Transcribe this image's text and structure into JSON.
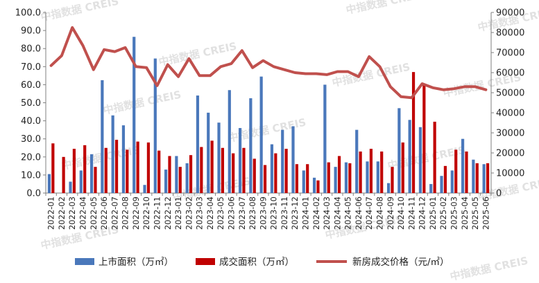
{
  "watermark": "中指数据 CREIS",
  "colors": {
    "supply_bar": "#4a78bb",
    "transaction_bar": "#c00000",
    "price_line": "#c0504d",
    "axis": "#7f7f7f"
  },
  "chart_data": {
    "type": "bar",
    "title": "",
    "categories": [
      "2022-01",
      "2022-02",
      "2022-03",
      "2022-04",
      "2022-05",
      "2022-06",
      "2022-07",
      "2022-08",
      "2022-09",
      "2022-10",
      "2022-11",
      "2022-12",
      "2023-01",
      "2023-02",
      "2023-03",
      "2023-04",
      "2023-05",
      "2023-06",
      "2023-07",
      "2023-08",
      "2023-09",
      "2023-10",
      "2023-11",
      "2023-12",
      "2024-01",
      "2024-02",
      "2024-03",
      "2024-04",
      "2024-05",
      "2024-06",
      "2024-07",
      "2024-08",
      "2024-09",
      "2024-10",
      "2024-11",
      "2024-12",
      "2025-01",
      "2025-02",
      "2025-03",
      "2025-04",
      "2025-05",
      "2025-06"
    ],
    "left_axis": {
      "ylim": [
        0,
        100
      ],
      "ticks": [
        "0.0",
        "10.0",
        "20.0",
        "30.0",
        "40.0",
        "50.0",
        "60.0",
        "70.0",
        "80.0",
        "90.0",
        "100.0"
      ]
    },
    "right_axis": {
      "ylim": [
        0,
        90000
      ],
      "ticks": [
        "0",
        "10000",
        "20000",
        "30000",
        "40000",
        "50000",
        "60000",
        "70000",
        "80000",
        "90000"
      ]
    },
    "series": [
      {
        "name": "上市面积（万㎡）",
        "type": "bar",
        "axis": "left",
        "values": [
          10.5,
          0,
          6.3,
          12.5,
          21.5,
          62.5,
          43.0,
          37.5,
          86.5,
          4.5,
          74.5,
          13.0,
          20.5,
          16.5,
          54.0,
          44.5,
          39.0,
          57.0,
          36.0,
          52.5,
          64.5,
          27.0,
          35.0,
          37.0,
          12.5,
          8.5,
          60.0,
          14.5,
          17.0,
          35.0,
          17.5,
          17.5,
          5.5,
          47.0,
          40.5,
          36.5,
          5.0,
          9.5,
          12.5,
          30.0,
          18.5,
          16.0
        ]
      },
      {
        "name": "成交面积（万㎡）",
        "type": "bar",
        "axis": "left",
        "values": [
          27.5,
          20.0,
          24.5,
          26.5,
          14.5,
          25.0,
          29.5,
          24.0,
          28.5,
          28.0,
          23.5,
          20.5,
          14.5,
          21.0,
          25.5,
          29.0,
          25.0,
          22.0,
          25.0,
          19.0,
          15.5,
          22.0,
          24.5,
          16.0,
          16.0,
          7.0,
          17.0,
          20.5,
          16.5,
          23.0,
          24.5,
          23.0,
          14.5,
          28.0,
          67.0,
          60.5,
          39.5,
          15.0,
          24.0,
          23.0,
          16.5,
          16.5
        ]
      },
      {
        "name": "新房成交价格（元/㎡）",
        "type": "line",
        "axis": "right",
        "values": [
          63500,
          68500,
          82500,
          73500,
          61500,
          71500,
          70500,
          72500,
          63000,
          62500,
          53500,
          64000,
          58000,
          67000,
          58500,
          58500,
          63000,
          64500,
          71000,
          62500,
          66000,
          63000,
          61500,
          60000,
          59500,
          59500,
          59000,
          60500,
          60500,
          58000,
          68000,
          63000,
          53000,
          48000,
          47500,
          54500,
          52500,
          51500,
          52000,
          53000,
          53000,
          51500
        ]
      }
    ],
    "grid": false,
    "legend": "bottom"
  }
}
